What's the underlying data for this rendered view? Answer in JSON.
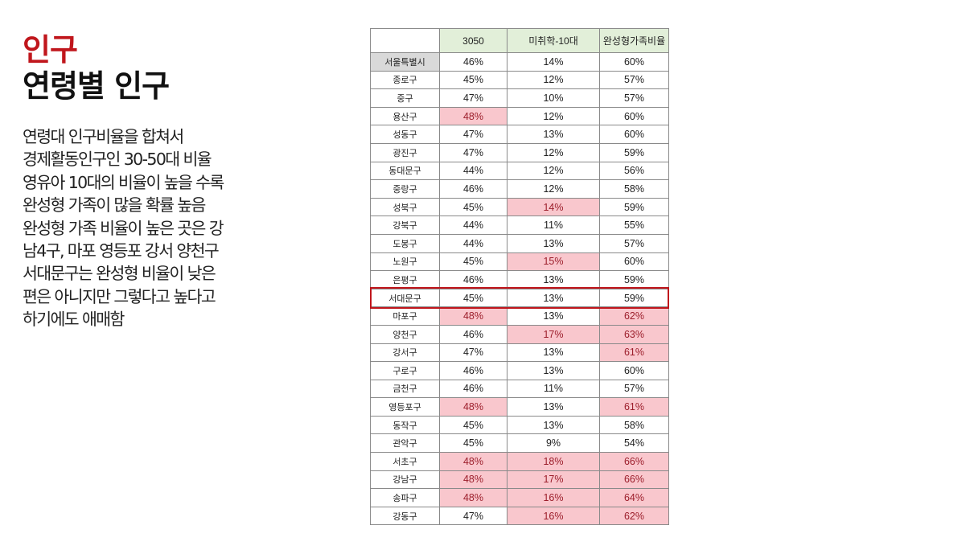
{
  "heading": {
    "category": "인구",
    "title": "연령별 인구"
  },
  "description": [
    "연령대 인구비율을 합쳐서",
    "경제활동인구인 30-50대 비율",
    "영유아 10대의 비율이 높을 수록",
    "완성형 가족이 많을 확률 높음",
    "완성형 가족 비율이 높은 곳은 강",
    "남4구, 마포 영등포 강서 양천구",
    "서대문구는 완성형 비율이 낮은",
    "편은 아니지만 그렇다고 높다고",
    "하기에도 애매함"
  ],
  "table": {
    "headers": [
      "",
      "3050",
      "미취학-10대",
      "완성형가족비율"
    ],
    "highlight_color": "#f9c7cd",
    "box_color": "#c0161c",
    "boxed_row": "서대문구",
    "rows": [
      {
        "district": "서울특별시",
        "v3050": "46%",
        "teen": "14%",
        "complete": "60%",
        "hl": []
      },
      {
        "district": "종로구",
        "v3050": "45%",
        "teen": "12%",
        "complete": "57%",
        "hl": []
      },
      {
        "district": "중구",
        "v3050": "47%",
        "teen": "10%",
        "complete": "57%",
        "hl": []
      },
      {
        "district": "용산구",
        "v3050": "48%",
        "teen": "12%",
        "complete": "60%",
        "hl": [
          "v3050"
        ]
      },
      {
        "district": "성동구",
        "v3050": "47%",
        "teen": "13%",
        "complete": "60%",
        "hl": []
      },
      {
        "district": "광진구",
        "v3050": "47%",
        "teen": "12%",
        "complete": "59%",
        "hl": []
      },
      {
        "district": "동대문구",
        "v3050": "44%",
        "teen": "12%",
        "complete": "56%",
        "hl": []
      },
      {
        "district": "중랑구",
        "v3050": "46%",
        "teen": "12%",
        "complete": "58%",
        "hl": []
      },
      {
        "district": "성북구",
        "v3050": "45%",
        "teen": "14%",
        "complete": "59%",
        "hl": [
          "teen"
        ]
      },
      {
        "district": "강북구",
        "v3050": "44%",
        "teen": "11%",
        "complete": "55%",
        "hl": []
      },
      {
        "district": "도봉구",
        "v3050": "44%",
        "teen": "13%",
        "complete": "57%",
        "hl": []
      },
      {
        "district": "노원구",
        "v3050": "45%",
        "teen": "15%",
        "complete": "60%",
        "hl": [
          "teen"
        ]
      },
      {
        "district": "은평구",
        "v3050": "46%",
        "teen": "13%",
        "complete": "59%",
        "hl": []
      },
      {
        "district": "서대문구",
        "v3050": "45%",
        "teen": "13%",
        "complete": "59%",
        "hl": []
      },
      {
        "district": "마포구",
        "v3050": "48%",
        "teen": "13%",
        "complete": "62%",
        "hl": [
          "v3050",
          "complete"
        ]
      },
      {
        "district": "양천구",
        "v3050": "46%",
        "teen": "17%",
        "complete": "63%",
        "hl": [
          "teen",
          "complete"
        ]
      },
      {
        "district": "강서구",
        "v3050": "47%",
        "teen": "13%",
        "complete": "61%",
        "hl": [
          "complete"
        ]
      },
      {
        "district": "구로구",
        "v3050": "46%",
        "teen": "13%",
        "complete": "60%",
        "hl": []
      },
      {
        "district": "금천구",
        "v3050": "46%",
        "teen": "11%",
        "complete": "57%",
        "hl": []
      },
      {
        "district": "영등포구",
        "v3050": "48%",
        "teen": "13%",
        "complete": "61%",
        "hl": [
          "v3050",
          "complete"
        ]
      },
      {
        "district": "동작구",
        "v3050": "45%",
        "teen": "13%",
        "complete": "58%",
        "hl": []
      },
      {
        "district": "관악구",
        "v3050": "45%",
        "teen": "9%",
        "complete": "54%",
        "hl": []
      },
      {
        "district": "서초구",
        "v3050": "48%",
        "teen": "18%",
        "complete": "66%",
        "hl": [
          "v3050",
          "teen",
          "complete"
        ]
      },
      {
        "district": "강남구",
        "v3050": "48%",
        "teen": "17%",
        "complete": "66%",
        "hl": [
          "v3050",
          "teen",
          "complete"
        ]
      },
      {
        "district": "송파구",
        "v3050": "48%",
        "teen": "16%",
        "complete": "64%",
        "hl": [
          "v3050",
          "teen",
          "complete"
        ]
      },
      {
        "district": "강동구",
        "v3050": "47%",
        "teen": "16%",
        "complete": "62%",
        "hl": [
          "teen",
          "complete"
        ]
      }
    ]
  }
}
